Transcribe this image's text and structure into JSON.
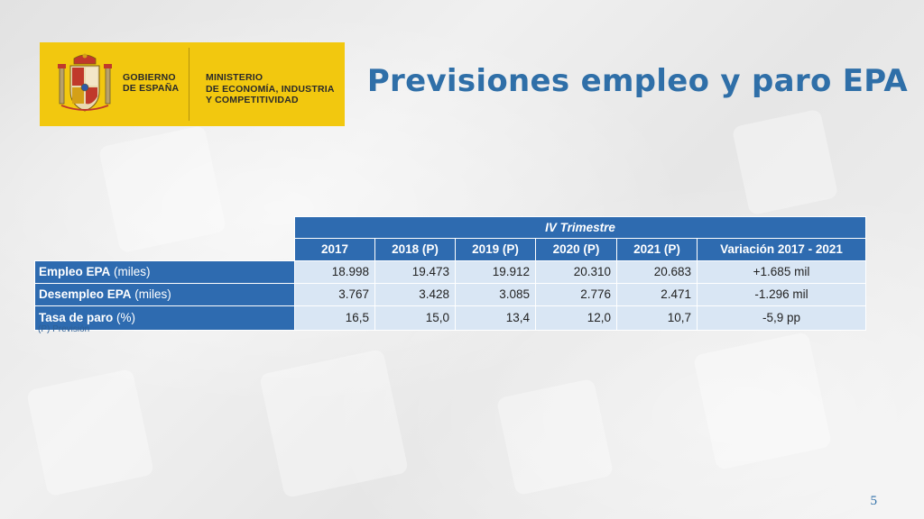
{
  "logo": {
    "gov_lines": [
      "GOBIERNO",
      "DE ESPAÑA"
    ],
    "ministry_lines": [
      "MINISTERIO",
      "DE ECONOMÍA, INDUSTRIA",
      "Y COMPETITIVIDAD"
    ]
  },
  "title": "Previsiones empleo y paro EPA",
  "table": {
    "super_header": "IV Trimestre",
    "columns": [
      "2017",
      "2018 (P)",
      "2019 (P)",
      "2020 (P)",
      "2021 (P)",
      "Variación 2017 - 2021"
    ],
    "rows": [
      {
        "label_bold": "Empleo EPA",
        "label_rest": " (miles)",
        "values": [
          "18.998",
          "19.473",
          "19.912",
          "20.310",
          "20.683"
        ],
        "variation": "+1.685  mil"
      },
      {
        "label_bold": "Desempleo EPA",
        "label_rest": " (miles)",
        "values": [
          "3.767",
          "3.428",
          "3.085",
          "2.776",
          "2.471"
        ],
        "variation": "-1.296  mil"
      },
      {
        "label_bold": "Tasa de paro",
        "label_rest": " (%)",
        "values": [
          "16,5",
          "15,0",
          "13,4",
          "12,0",
          "10,7"
        ],
        "variation": "-5,9  pp"
      }
    ]
  },
  "note": "(P) Previsión",
  "page_number": "5",
  "colors": {
    "brand_blue": "#2e6bb0",
    "title_blue": "#2f6fa8",
    "cell_light": "#d9e6f4",
    "logo_yellow": "#f2c80f"
  }
}
